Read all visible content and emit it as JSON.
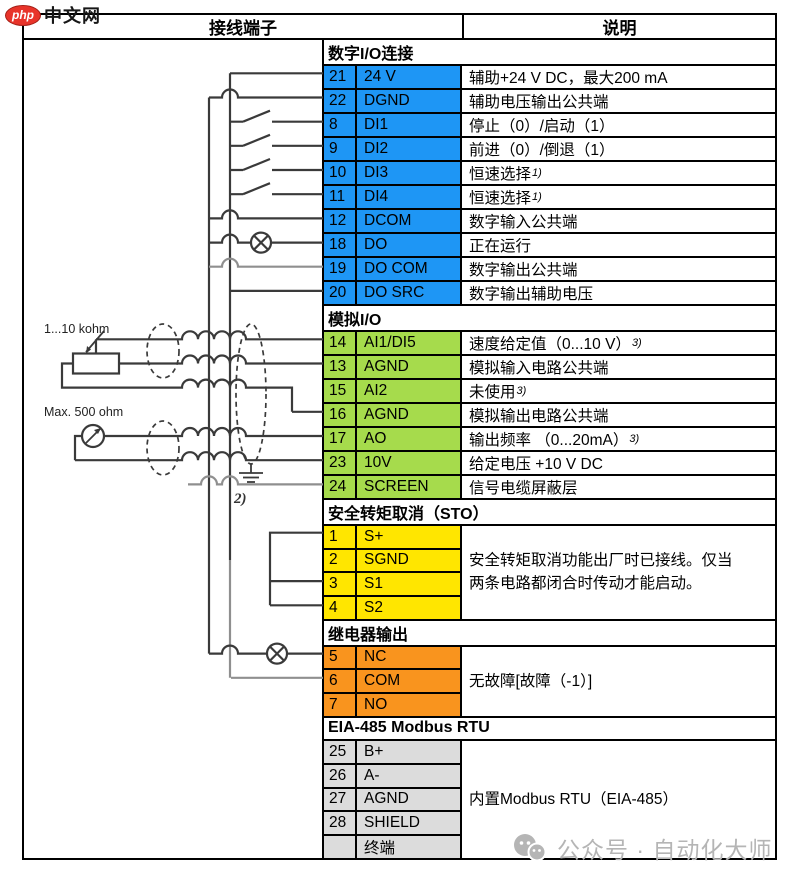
{
  "watermark_top": {
    "bubble": "php",
    "site": "中文网"
  },
  "watermark_bottom": {
    "text": "公众号 · 自动化大师"
  },
  "header": {
    "left": "接线端子",
    "right": "说明"
  },
  "diagram": {
    "pot_label": "1...10 kohm",
    "meter_label": "Max. 500 ohm",
    "footnote": "2)"
  },
  "colors": {
    "digital": "#1e96f5",
    "analog": "#a6db4c",
    "sto": "#ffe600",
    "relay": "#f9941e",
    "modbus": "#dcdcdc"
  },
  "sections": [
    {
      "title": "数字I/O连接",
      "bg": "#1e96f5",
      "rows": [
        {
          "num": "21",
          "label": "24 V",
          "desc": "辅助+24 V DC，最大200 mA"
        },
        {
          "num": "22",
          "label": "DGND",
          "desc": "辅助电压输出公共端"
        },
        {
          "num": "8",
          "label": "DI1",
          "desc": "停止（0）/启动（1）"
        },
        {
          "num": "9",
          "label": "DI2",
          "desc": "前进（0）/倒退（1）"
        },
        {
          "num": "10",
          "label": "DI3",
          "desc": "恒速选择",
          "sup": "1)"
        },
        {
          "num": "11",
          "label": "DI4",
          "desc": "恒速选择",
          "sup": "1)"
        },
        {
          "num": "12",
          "label": "DCOM",
          "desc": "数字输入公共端"
        },
        {
          "num": "18",
          "label": "DO",
          "desc": "正在运行"
        },
        {
          "num": "19",
          "label": "DO COM",
          "desc": "数字输出公共端"
        },
        {
          "num": "20",
          "label": "DO SRC",
          "desc": "数字输出辅助电压"
        }
      ]
    },
    {
      "title": "模拟I/O",
      "bg": "#a6db4c",
      "rows": [
        {
          "num": "14",
          "label": "AI1/DI5",
          "desc": "速度给定值（0...10 V）",
          "sup": "3)"
        },
        {
          "num": "13",
          "label": "AGND",
          "desc": "模拟输入电路公共端"
        },
        {
          "num": "15",
          "label": "AI2",
          "desc": "未使用",
          "sup": "3)"
        },
        {
          "num": "16",
          "label": "AGND",
          "desc": "模拟输出电路公共端"
        },
        {
          "num": "17",
          "label": "AO",
          "desc": "输出频率 （0...20mA）",
          "sup": "3)"
        },
        {
          "num": "23",
          "label": "10V",
          "desc": "给定电压 +10 V DC"
        },
        {
          "num": "24",
          "label": "SCREEN",
          "desc": "信号电缆屏蔽层"
        }
      ]
    },
    {
      "title": "安全转矩取消（STO）",
      "bg": "#ffe600",
      "merged_desc": "安全转矩取消功能出厂时已接线。仅当两条电路都闭合时传动才能启动。",
      "rows": [
        {
          "num": "1",
          "label": "S+"
        },
        {
          "num": "2",
          "label": "SGND"
        },
        {
          "num": "3",
          "label": "S1"
        },
        {
          "num": "4",
          "label": "S2"
        }
      ]
    },
    {
      "title": "继电器输出",
      "bg": "#f9941e",
      "merged_desc": "无故障[故障（-1）]",
      "rows": [
        {
          "num": "5",
          "label": "NC"
        },
        {
          "num": "6",
          "label": "COM"
        },
        {
          "num": "7",
          "label": "NO"
        }
      ]
    },
    {
      "title": "EIA-485 Modbus RTU",
      "bg": "#dcdcdc",
      "merged_desc": "内置Modbus RTU（EIA-485）",
      "rows": [
        {
          "num": "25",
          "label": "B+"
        },
        {
          "num": "26",
          "label": "A-"
        },
        {
          "num": "27",
          "label": "AGND"
        },
        {
          "num": "28",
          "label": "SHIELD"
        },
        {
          "num": "",
          "label": "终端"
        }
      ]
    }
  ]
}
